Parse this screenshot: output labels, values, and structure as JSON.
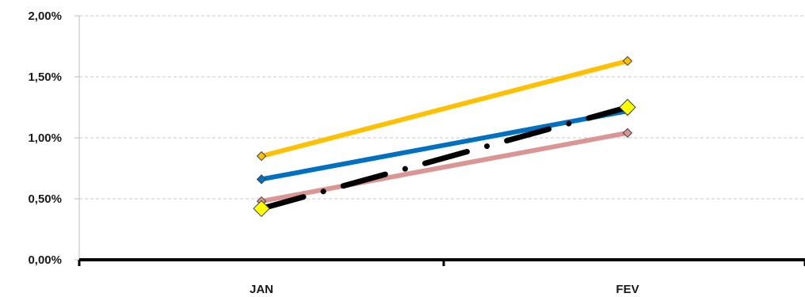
{
  "chart_data": {
    "type": "line",
    "categories": [
      "JAN",
      "FEV"
    ],
    "ylim": [
      0,
      0.02
    ],
    "y_ticks": [
      "0,00%",
      "0,50%",
      "1,00%",
      "1,50%",
      "2,00%"
    ],
    "y_tick_values": [
      0,
      0.005,
      0.01,
      0.015,
      0.02
    ],
    "grid": true,
    "legend": "none",
    "series": [
      {
        "values": [
          0.0085,
          0.0163
        ],
        "color": "#FFC000",
        "style": "solid"
      },
      {
        "values": [
          0.0066,
          0.0122
        ],
        "color": "#0070C0",
        "style": "solid"
      },
      {
        "values": [
          0.0048,
          0.0104
        ],
        "color": "#D99694",
        "style": "solid"
      },
      {
        "values": [
          0.0042,
          0.0125
        ],
        "color": "#000000",
        "style": "dash-dot",
        "marker_color": "#FFFF00"
      }
    ]
  }
}
